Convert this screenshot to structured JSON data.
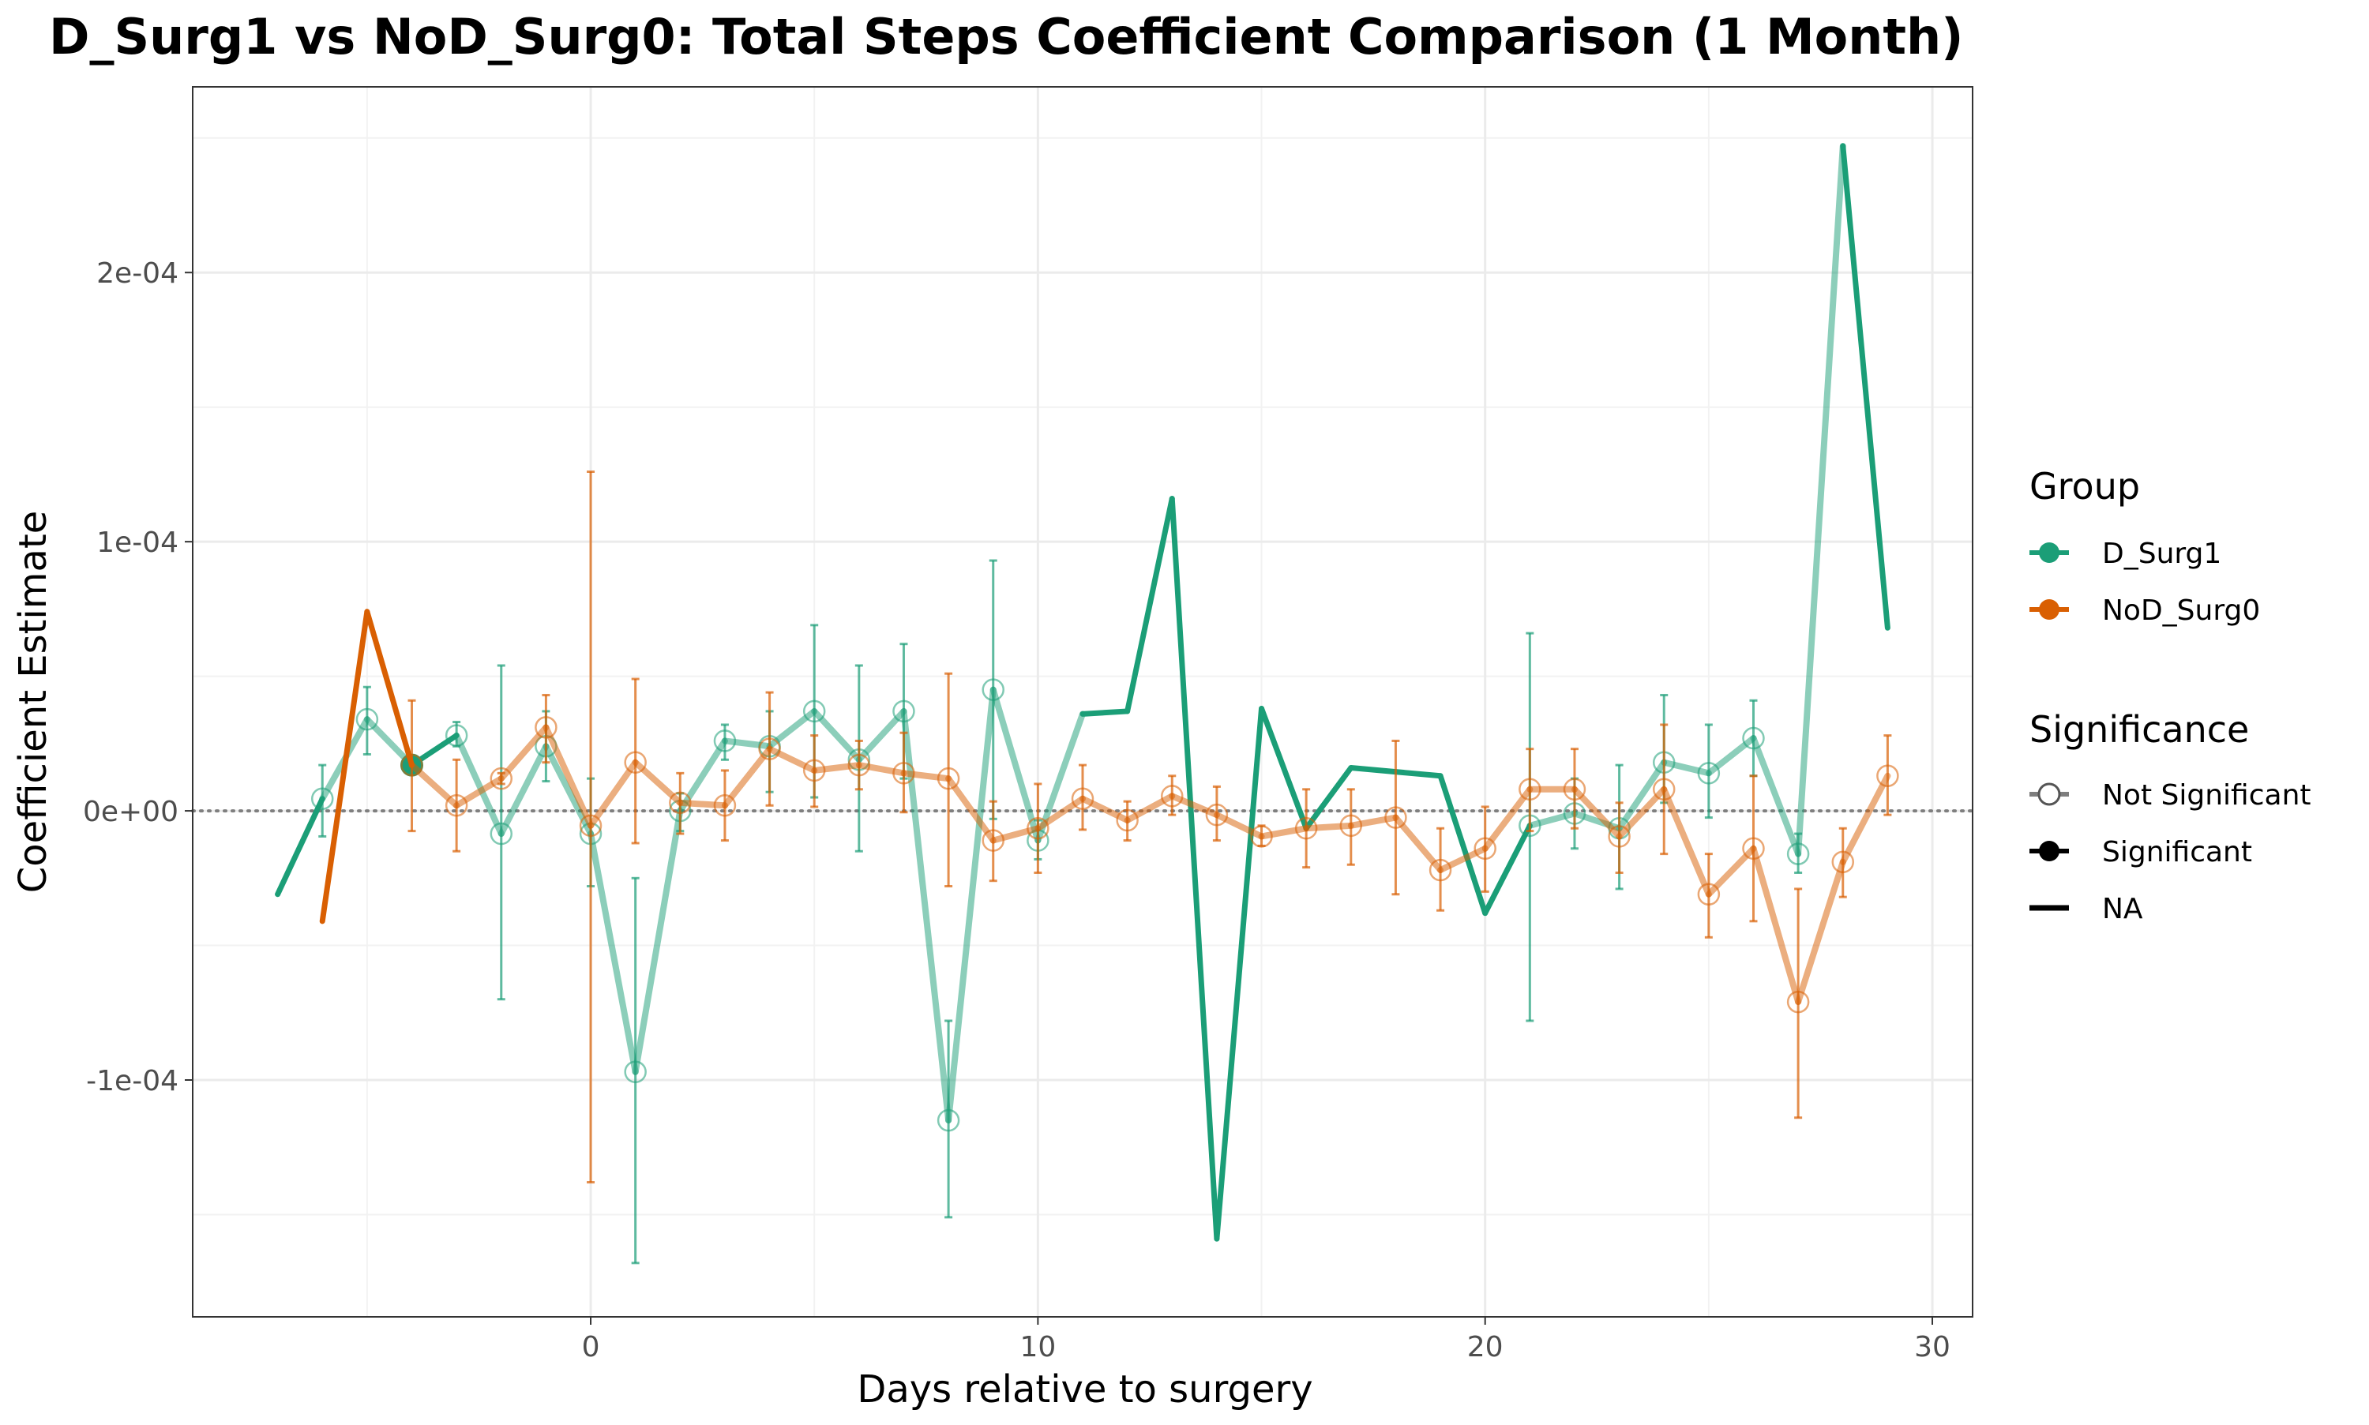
{
  "chart_data": {
    "type": "line",
    "title": "D_Surg1 vs NoD_Surg0: Total Steps Coefficient Comparison (1 Month)",
    "xlabel": "Days relative to surgery",
    "ylabel": "Coefficient Estimate",
    "xlim": [
      -8.9,
      30.9
    ],
    "ylim": [
      -0.000188,
      0.000269
    ],
    "x_ticks": [
      0,
      10,
      20,
      30
    ],
    "x_tick_labels": [
      "0",
      "10",
      "20",
      "30"
    ],
    "y_ticks": [
      -0.0001,
      0,
      0.0001,
      0.0002
    ],
    "y_tick_labels": [
      "-1e-04",
      "0e+00",
      "1e-04",
      "2e-04"
    ],
    "grid": true,
    "reference_line": {
      "y": 0,
      "style": "dotted"
    },
    "legend": {
      "position": "right",
      "group_title": "Group",
      "groups": [
        {
          "label": "D_Surg1",
          "color": "#1b9e77"
        },
        {
          "label": "NoD_Surg0",
          "color": "#d95f02"
        }
      ],
      "significance_title": "Significance",
      "significance": [
        {
          "label": "Not Significant",
          "marker": "open-circle"
        },
        {
          "label": "Significant",
          "marker": "filled-circle"
        },
        {
          "label": "NA",
          "marker": "line"
        }
      ]
    },
    "series": [
      {
        "name": "D_Surg1",
        "color": "#1b9e77",
        "points": [
          {
            "x": -7,
            "y": -3.1e-05,
            "sig": "NA"
          },
          {
            "x": -6,
            "y": 4.5e-06,
            "lo": -9.5e-06,
            "hi": 1.7e-05,
            "sig": "Not Significant"
          },
          {
            "x": -5,
            "y": 3.4e-05,
            "lo": 2.1e-05,
            "hi": 4.6e-05,
            "sig": "Not Significant"
          },
          {
            "x": -4,
            "y": 1.7e-05,
            "sig": "Significant"
          },
          {
            "x": -3,
            "y": 2.8e-05,
            "lo": 2.4e-05,
            "hi": 3.3e-05,
            "sig": "Not Significant"
          },
          {
            "x": -2,
            "y": -8.5e-06,
            "lo": -7e-05,
            "hi": 5.4e-05,
            "sig": "Not Significant"
          },
          {
            "x": -1,
            "y": 2.4e-05,
            "lo": 1.1e-05,
            "hi": 3.7e-05,
            "sig": "Not Significant"
          },
          {
            "x": 0,
            "y": -8.5e-06,
            "lo": -2.8e-05,
            "hi": 1.2e-05,
            "sig": "Not Significant"
          },
          {
            "x": 1,
            "y": -9.7e-05,
            "lo": -0.000168,
            "hi": -2.5e-05,
            "sig": "Not Significant"
          },
          {
            "x": 2,
            "y": 0.0,
            "lo": -7.5e-06,
            "hi": 6.5e-06,
            "sig": "Not Significant"
          },
          {
            "x": 3,
            "y": 2.6e-05,
            "lo": 1.9e-05,
            "hi": 3.2e-05,
            "sig": "Not Significant"
          },
          {
            "x": 4,
            "y": 2.4e-05,
            "lo": 7e-06,
            "hi": 3.7e-05,
            "sig": "Not Significant"
          },
          {
            "x": 5,
            "y": 3.7e-05,
            "lo": 5e-06,
            "hi": 6.9e-05,
            "sig": "Not Significant"
          },
          {
            "x": 6,
            "y": 1.9e-05,
            "lo": -1.5e-05,
            "hi": 5.4e-05,
            "sig": "Not Significant"
          },
          {
            "x": 7,
            "y": 3.7e-05,
            "lo": 1.2e-05,
            "hi": 6.2e-05,
            "sig": "Not Significant"
          },
          {
            "x": 8,
            "y": -0.000115,
            "lo": -0.000151,
            "hi": -7.8e-05,
            "sig": "Not Significant"
          },
          {
            "x": 9,
            "y": 4.5e-05,
            "lo": -3e-06,
            "hi": 9.3e-05,
            "sig": "Not Significant"
          },
          {
            "x": 10,
            "y": -1.1e-05,
            "lo": -1.8e-05,
            "hi": -3.5e-06,
            "sig": "Not Significant"
          },
          {
            "x": 11,
            "y": 3.6e-05,
            "sig": "NA"
          },
          {
            "x": 12,
            "y": 3.7e-05,
            "sig": "NA"
          },
          {
            "x": 13,
            "y": 0.000116,
            "sig": "NA"
          },
          {
            "x": 14,
            "y": -0.000159,
            "sig": "NA"
          },
          {
            "x": 15,
            "y": 3.8e-05,
            "sig": "NA"
          },
          {
            "x": 16,
            "y": -6.5e-06,
            "sig": "NA"
          },
          {
            "x": 17,
            "y": 1.6e-05,
            "sig": "NA"
          },
          {
            "x": 19,
            "y": 1.3e-05,
            "sig": "NA"
          },
          {
            "x": 20,
            "y": -3.8e-05,
            "sig": "NA"
          },
          {
            "x": 21,
            "y": -5.5e-06,
            "lo": -7.8e-05,
            "hi": 6.6e-05,
            "sig": "Not Significant"
          },
          {
            "x": 22,
            "y": -1e-06,
            "lo": -1.4e-05,
            "hi": 1.2e-05,
            "sig": "Not Significant"
          },
          {
            "x": 23,
            "y": -6.5e-06,
            "lo": -2.9e-05,
            "hi": 1.7e-05,
            "sig": "Not Significant"
          },
          {
            "x": 24,
            "y": 1.8e-05,
            "lo": 3e-06,
            "hi": 4.3e-05,
            "sig": "Not Significant"
          },
          {
            "x": 25,
            "y": 1.4e-05,
            "lo": -2.5e-06,
            "hi": 3.2e-05,
            "sig": "Not Significant"
          },
          {
            "x": 26,
            "y": 2.7e-05,
            "lo": 1.3e-05,
            "hi": 4.1e-05,
            "sig": "Not Significant"
          },
          {
            "x": 27,
            "y": -1.6e-05,
            "lo": -2.3e-05,
            "hi": -8.5e-06,
            "sig": "Not Significant"
          },
          {
            "x": 28,
            "y": 0.000247,
            "sig": "NA"
          },
          {
            "x": 29,
            "y": 6.8e-05,
            "sig": "NA"
          }
        ]
      },
      {
        "name": "NoD_Surg0",
        "color": "#d95f02",
        "points": [
          {
            "x": -6,
            "y": -4.1e-05,
            "sig": "NA"
          },
          {
            "x": -5,
            "y": 7.4e-05,
            "sig": "NA"
          },
          {
            "x": -4,
            "y": 1.7e-05,
            "lo": -7.5e-06,
            "hi": 4.1e-05,
            "sig": "Not Significant"
          },
          {
            "x": -3,
            "y": 2e-06,
            "lo": -1.5e-05,
            "hi": 1.9e-05,
            "sig": "Not Significant"
          },
          {
            "x": -2,
            "y": 1.2e-05,
            "lo": 1e-05,
            "hi": 1.4e-05,
            "sig": "Not Significant"
          },
          {
            "x": -1,
            "y": 3.1e-05,
            "lo": 1.8e-05,
            "hi": 4.3e-05,
            "sig": "Not Significant"
          },
          {
            "x": 0,
            "y": -5.5e-06,
            "lo": -0.000138,
            "hi": 0.000126,
            "sig": "Not Significant"
          },
          {
            "x": 1,
            "y": 1.8e-05,
            "lo": -1.2e-05,
            "hi": 4.9e-05,
            "sig": "Not Significant"
          },
          {
            "x": 2,
            "y": 3e-06,
            "lo": -8.5e-06,
            "hi": 1.4e-05,
            "sig": "Not Significant"
          },
          {
            "x": 3,
            "y": 2e-06,
            "lo": -1.1e-05,
            "hi": 1.5e-05,
            "sig": "Not Significant"
          },
          {
            "x": 4,
            "y": 2.3e-05,
            "lo": 2e-06,
            "hi": 4.4e-05,
            "sig": "Not Significant"
          },
          {
            "x": 5,
            "y": 1.5e-05,
            "lo": 1.5e-06,
            "hi": 2.8e-05,
            "sig": "Not Significant"
          },
          {
            "x": 6,
            "y": 1.7e-05,
            "lo": 8e-06,
            "hi": 2.6e-05,
            "sig": "Not Significant"
          },
          {
            "x": 7,
            "y": 1.4e-05,
            "lo": -5e-07,
            "hi": 2.9e-05,
            "sig": "Not Significant"
          },
          {
            "x": 8,
            "y": 1.2e-05,
            "lo": -2.8e-05,
            "hi": 5.1e-05,
            "sig": "Not Significant"
          },
          {
            "x": 9,
            "y": -1.1e-05,
            "lo": -2.6e-05,
            "hi": 3.5e-06,
            "sig": "Not Significant"
          },
          {
            "x": 10,
            "y": -6.5e-06,
            "lo": -2.3e-05,
            "hi": 1e-05,
            "sig": "Not Significant"
          },
          {
            "x": 11,
            "y": 4.5e-06,
            "lo": -7e-06,
            "hi": 1.7e-05,
            "sig": "Not Significant"
          },
          {
            "x": 12,
            "y": -3.5e-06,
            "lo": -1.1e-05,
            "hi": 3.5e-06,
            "sig": "Not Significant"
          },
          {
            "x": 13,
            "y": 5.5e-06,
            "lo": -1.5e-06,
            "hi": 1.3e-05,
            "sig": "Not Significant"
          },
          {
            "x": 14,
            "y": -1.5e-06,
            "lo": -1.1e-05,
            "hi": 9e-06,
            "sig": "Not Significant"
          },
          {
            "x": 15,
            "y": -9.5e-06,
            "lo": -1.3e-05,
            "hi": -5.5e-06,
            "sig": "Not Significant"
          },
          {
            "x": 16,
            "y": -6.5e-06,
            "lo": -2.1e-05,
            "hi": 8e-06,
            "sig": "Not Significant"
          },
          {
            "x": 17,
            "y": -5.5e-06,
            "lo": -2e-05,
            "hi": 8e-06,
            "sig": "Not Significant"
          },
          {
            "x": 18,
            "y": -2.5e-06,
            "lo": -3.1e-05,
            "hi": 2.6e-05,
            "sig": "Not Significant"
          },
          {
            "x": 19,
            "y": -2.2e-05,
            "lo": -3.7e-05,
            "hi": -6.5e-06,
            "sig": "Not Significant"
          },
          {
            "x": 20,
            "y": -1.4e-05,
            "lo": -3e-05,
            "hi": 1.5e-06,
            "sig": "Not Significant"
          },
          {
            "x": 21,
            "y": 8e-06,
            "lo": -7.5e-06,
            "hi": 2.3e-05,
            "sig": "Not Significant"
          },
          {
            "x": 22,
            "y": 8e-06,
            "lo": -6.5e-06,
            "hi": 2.3e-05,
            "sig": "Not Significant"
          },
          {
            "x": 23,
            "y": -9.5e-06,
            "lo": -2.3e-05,
            "hi": 3e-06,
            "sig": "Not Significant"
          },
          {
            "x": 24,
            "y": 8e-06,
            "lo": -1.6e-05,
            "hi": 3.2e-05,
            "sig": "Not Significant"
          },
          {
            "x": 25,
            "y": -3.1e-05,
            "lo": -4.7e-05,
            "hi": -1.6e-05,
            "sig": "Not Significant"
          },
          {
            "x": 26,
            "y": -1.4e-05,
            "lo": -4.1e-05,
            "hi": 1.3e-05,
            "sig": "Not Significant"
          },
          {
            "x": 27,
            "y": -7.1e-05,
            "lo": -0.000114,
            "hi": -2.9e-05,
            "sig": "Not Significant"
          },
          {
            "x": 28,
            "y": -1.9e-05,
            "lo": -3.2e-05,
            "hi": -6.5e-06,
            "sig": "Not Significant"
          },
          {
            "x": 29,
            "y": 1.3e-05,
            "lo": -1.5e-06,
            "hi": 2.8e-05,
            "sig": "Not Significant"
          }
        ]
      }
    ]
  }
}
